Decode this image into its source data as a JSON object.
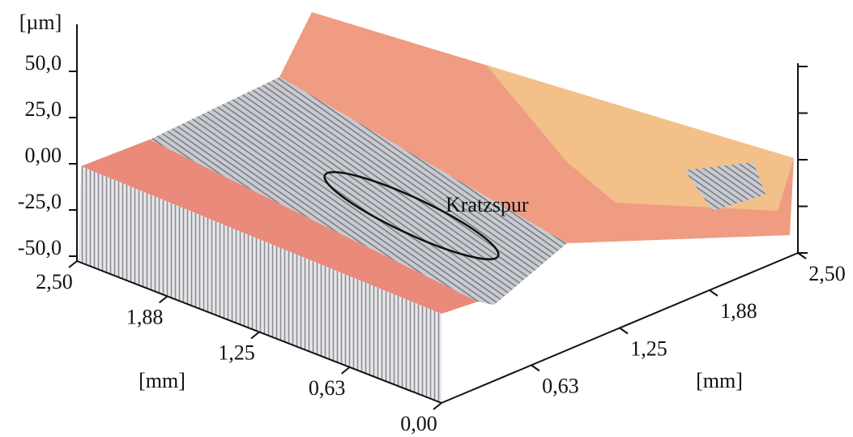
{
  "chart_data": {
    "type": "surface3d",
    "z_label": "[µm]",
    "x_label": "[mm]",
    "y_label": "[mm]",
    "annotation": "Kratzspur",
    "zlim": [
      -50,
      50
    ],
    "zticks": [
      {
        "value": 50,
        "label": "50,0"
      },
      {
        "value": 25,
        "label": "25,0"
      },
      {
        "value": 0,
        "label": "0,00"
      },
      {
        "value": -25,
        "label": "-25,0"
      },
      {
        "value": -50,
        "label": "-50,0"
      }
    ],
    "xlim": [
      0,
      2.5
    ],
    "xticks": [
      {
        "value": 2.5,
        "label": "2,50"
      },
      {
        "value": 1.88,
        "label": "1,88"
      },
      {
        "value": 1.25,
        "label": "1,25"
      },
      {
        "value": 0.63,
        "label": "0,63"
      },
      {
        "value": 0,
        "label": "0,00"
      }
    ],
    "ylim": [
      0,
      2.5
    ],
    "yticks": [
      {
        "value": 0.63,
        "label": "0,63"
      },
      {
        "value": 1.25,
        "label": "1,25"
      },
      {
        "value": 1.88,
        "label": "1,88"
      },
      {
        "value": 2.5,
        "label": "2,50"
      }
    ]
  }
}
